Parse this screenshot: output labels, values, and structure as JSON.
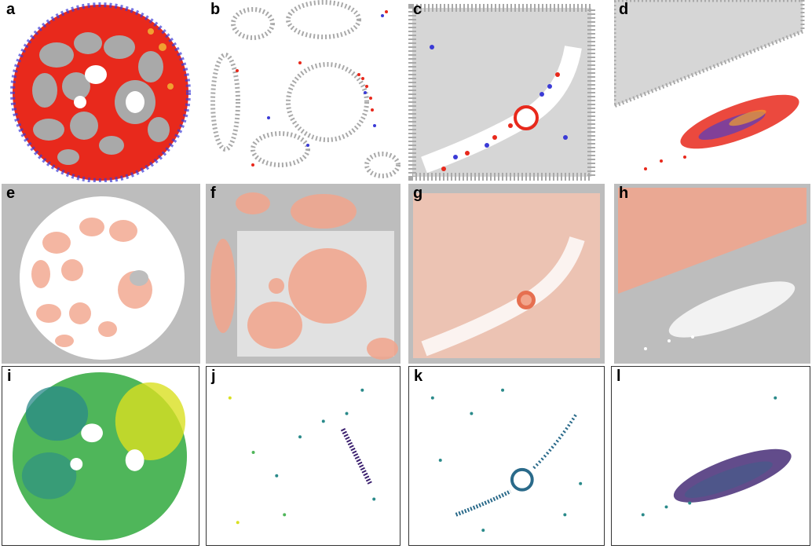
{
  "figure": {
    "panels": [
      {
        "id": "a",
        "label": "a",
        "kind": "tissue-overview-segmentation",
        "palette": "red-blue-gray"
      },
      {
        "id": "b",
        "label": "b",
        "kind": "cells-scatter",
        "palette": "red-blue-gray"
      },
      {
        "id": "c",
        "label": "c",
        "kind": "cells-scatter",
        "palette": "red-blue-gray"
      },
      {
        "id": "d",
        "label": "d",
        "kind": "cells-scatter",
        "palette": "red-blue-gray"
      },
      {
        "id": "e",
        "label": "e",
        "kind": "heatmap-overview",
        "palette": "salmon-white-gray"
      },
      {
        "id": "f",
        "label": "f",
        "kind": "heatmap",
        "palette": "salmon-white-gray"
      },
      {
        "id": "g",
        "label": "g",
        "kind": "heatmap",
        "palette": "salmon-white-gray"
      },
      {
        "id": "h",
        "label": "h",
        "kind": "heatmap",
        "palette": "salmon-white-gray"
      },
      {
        "id": "i",
        "label": "i",
        "kind": "density-overview",
        "palette": "viridis"
      },
      {
        "id": "j",
        "label": "j",
        "kind": "density-scatter",
        "palette": "viridis"
      },
      {
        "id": "k",
        "label": "k",
        "kind": "density-scatter",
        "palette": "viridis"
      },
      {
        "id": "l",
        "label": "l",
        "kind": "density-scatter",
        "palette": "viridis"
      }
    ],
    "colors": {
      "gray_cells": "#a9a9a9",
      "red": "#e8291c",
      "blue": "#3b3bd6",
      "orange": "#f0a030",
      "heat_bg": "#bdbdbd",
      "salmon": "#f2a58c",
      "salmon_dark": "#e66f50",
      "white": "#ffffff",
      "viridis_dark": "#3b1f6e",
      "viridis_teal": "#2a8a8a",
      "viridis_green": "#4fb65a",
      "viridis_yellow": "#d9e021"
    }
  }
}
